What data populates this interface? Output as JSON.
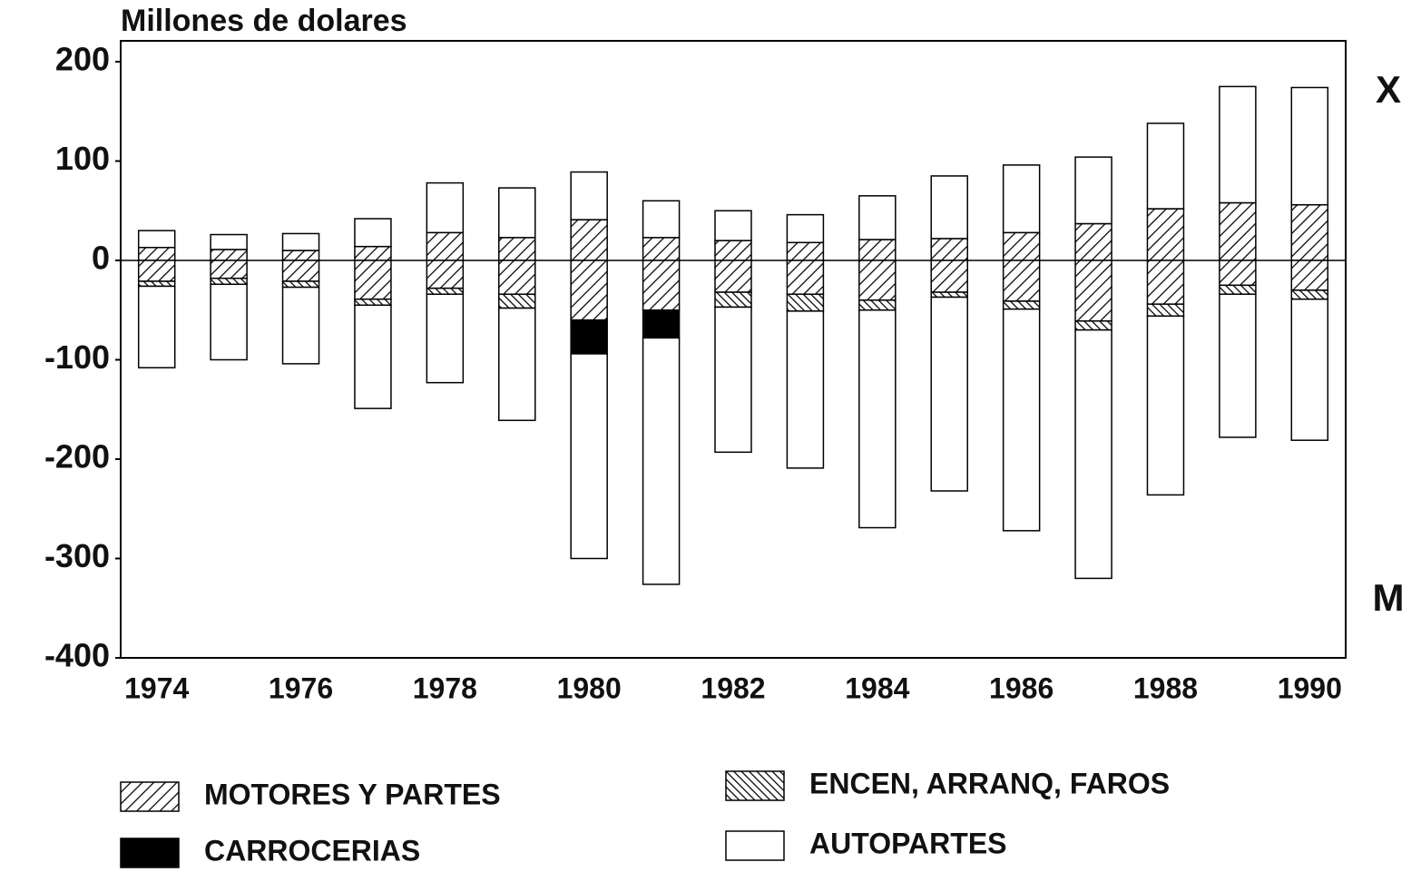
{
  "chart_data": {
    "type": "bar",
    "stacked": true,
    "title": "Millones de dolares",
    "x_label": "X",
    "m_label": "M",
    "categories": [
      "1974",
      null,
      "1976",
      null,
      "1978",
      null,
      "1980",
      null,
      "1982",
      null,
      "1984",
      null,
      "1986",
      null,
      "1988",
      null,
      "1990"
    ],
    "ylim": [
      -400,
      200
    ],
    "yticks": [
      -400,
      -300,
      -200,
      -100,
      0,
      100,
      200
    ],
    "series": [
      {
        "name": "MOTORES Y PARTES",
        "pattern": "hatch",
        "color": "#000000",
        "values": [
          13,
          11,
          10,
          14,
          28,
          23,
          41,
          23,
          20,
          18,
          21,
          22,
          28,
          37,
          52,
          58,
          56
        ],
        "values_m": [
          -21,
          -18,
          -21,
          -39,
          -28,
          -34,
          -60,
          -50,
          -32,
          -34,
          -40,
          -32,
          -41,
          -61,
          -44,
          -25,
          -30
        ]
      },
      {
        "name": "ENCEN, ARRANQ, FAROS",
        "pattern": "dense-hatch",
        "color": "#000000",
        "values": [
          null,
          null,
          null,
          null,
          null,
          null,
          null,
          null,
          null,
          null,
          null,
          null,
          null,
          null,
          null,
          null,
          null
        ],
        "values_m": [
          -5,
          -6,
          -6,
          -6,
          -6,
          -14,
          null,
          null,
          -15,
          -17,
          -10,
          -5,
          -8,
          -9,
          -12,
          -9,
          -9
        ]
      },
      {
        "name": "CARROCERIAS",
        "pattern": "solid",
        "color": "#000000",
        "values": [
          null,
          null,
          null,
          null,
          null,
          null,
          null,
          null,
          null,
          null,
          null,
          null,
          null,
          null,
          null,
          null,
          null
        ],
        "values_m": [
          null,
          null,
          null,
          null,
          null,
          null,
          -34,
          -28,
          null,
          null,
          null,
          null,
          null,
          null,
          null,
          null,
          null
        ]
      },
      {
        "name": "AUTOPARTES",
        "pattern": "empty",
        "color": "#ffffff",
        "values": [
          17,
          15,
          17,
          28,
          50,
          50,
          48,
          37,
          30,
          28,
          44,
          63,
          68,
          67,
          86,
          117,
          118
        ],
        "values_m": [
          -82,
          -76,
          -77,
          -104,
          -89,
          -113,
          -206,
          -248,
          -146,
          -158,
          -219,
          -195,
          -223,
          -250,
          -180,
          -144,
          -142
        ]
      }
    ]
  }
}
